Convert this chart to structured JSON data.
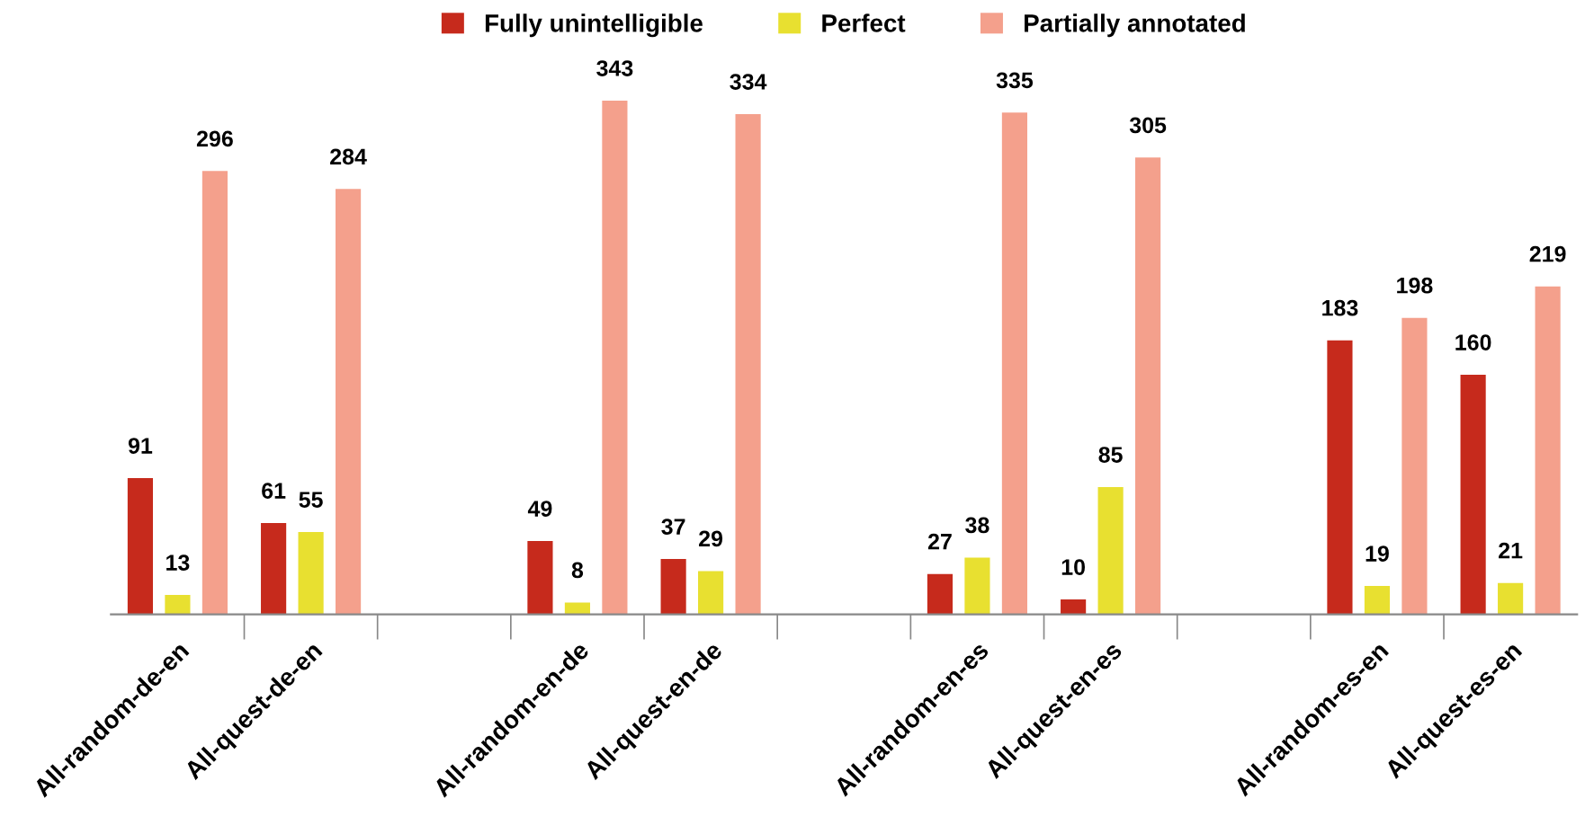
{
  "chart_data": {
    "type": "bar",
    "categories": [
      "All-random-de-en",
      "All-quest-de-en",
      null,
      "All-random-en-de",
      "All-quest-en-de",
      null,
      "All-random-en-es",
      "All-quest-en-es",
      null,
      "All-random-es-en",
      "All-quest-es-en"
    ],
    "series": [
      {
        "name": "Fully unintelligible",
        "color": "#c62a1c",
        "values": [
          91,
          61,
          null,
          49,
          37,
          null,
          27,
          10,
          null,
          183,
          160
        ]
      },
      {
        "name": "Perfect",
        "color": "#e8e030",
        "values": [
          13,
          55,
          null,
          8,
          29,
          null,
          38,
          85,
          null,
          19,
          21
        ]
      },
      {
        "name": "Partially annotated",
        "color": "#f4a08c",
        "values": [
          296,
          284,
          null,
          343,
          334,
          null,
          335,
          305,
          null,
          198,
          219
        ]
      }
    ],
    "data_labels": true,
    "legend": "top",
    "grid": false
  }
}
